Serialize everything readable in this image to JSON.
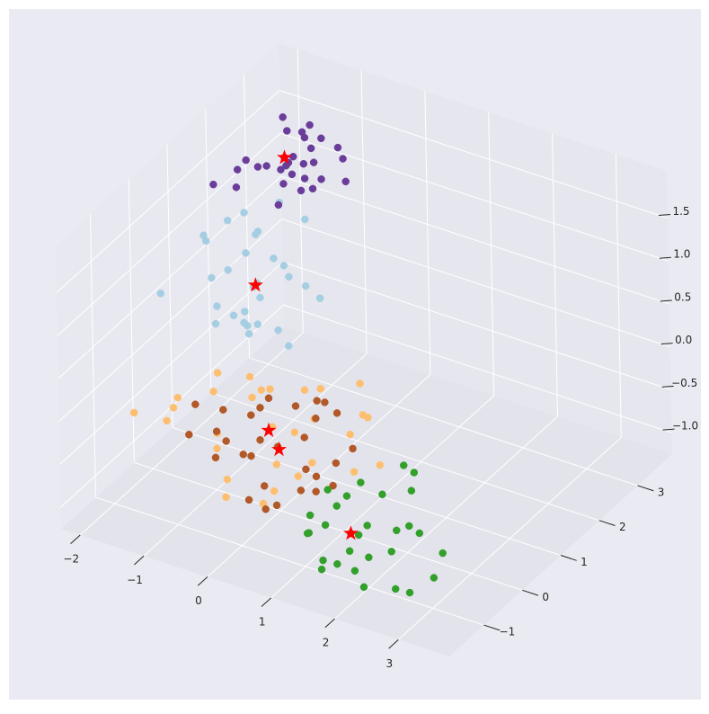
{
  "chart_data": {
    "type": "scatter3d",
    "xlim": [
      -2.3,
      3.8
    ],
    "ylim": [
      -1.9,
      3.9
    ],
    "zlim": [
      -1.25,
      2.05
    ],
    "xticks": [
      {
        "value": -2,
        "label": "−2"
      },
      {
        "value": -1,
        "label": "−1"
      },
      0,
      1,
      2,
      3
    ],
    "yticks": [
      {
        "value": -1,
        "label": "−1"
      },
      0,
      1,
      2,
      3
    ],
    "zticks": [
      {
        "value": -1,
        "label": "−1.0"
      },
      {
        "value": -0.5,
        "label": "−0.5"
      },
      {
        "value": 0,
        "label": "0.0"
      },
      0.5,
      {
        "value": 1,
        "label": "1.0"
      },
      1.5
    ],
    "grid": true,
    "series": [
      {
        "color": "#a6cee3",
        "x": [
          -1.1,
          -0.8,
          -1.5,
          -1.3,
          -0.6,
          -1.9,
          -1.0,
          -0.4,
          -1.6,
          -1.2,
          -0.9,
          -1.4,
          -0.7,
          -2.2,
          -1.1,
          -0.5,
          -1.8,
          -1.3,
          -0.9,
          -1.0,
          -1.5,
          -0.3,
          -1.2,
          -0.8,
          -1.7,
          -1.1,
          -0.6,
          -1.4,
          -2.0,
          -1.0
        ],
        "y": [
          1.2,
          1.5,
          0.9,
          1.6,
          1.0,
          1.3,
          0.8,
          1.4,
          1.8,
          1.1,
          0.7,
          1.5,
          1.9,
          0.6,
          1.3,
          1.1,
          1.7,
          1.0,
          1.4,
          0.9,
          1.2,
          1.6,
          1.5,
          0.8,
          1.1,
          1.9,
          1.3,
          0.7,
          1.4,
          1.2
        ],
        "z": [
          0.6,
          0.8,
          0.4,
          1.0,
          0.3,
          0.9,
          0.5,
          0.7,
          1.1,
          0.2,
          0.4,
          0.8,
          1.2,
          0.5,
          0.6,
          0.1,
          1.0,
          0.3,
          0.9,
          0.2,
          0.7,
          0.5,
          1.1,
          0.4,
          0.6,
          1.3,
          0.8,
          0.3,
          0.9,
          0.5
        ]
      },
      {
        "color": "#6a3d9a",
        "x": [
          -1.5,
          -1.2,
          -1.8,
          -1.0,
          -1.4,
          -1.6,
          -2.0,
          -0.9,
          -1.3,
          -1.1,
          -1.7,
          -1.5,
          -0.7,
          -1.9,
          -1.2,
          -1.4,
          -1.0,
          -1.6,
          -1.3,
          -0.8,
          -1.5,
          -2.2,
          -1.1,
          -1.8,
          -1.2,
          -1.4,
          -0.6,
          -1.7,
          -1.3,
          -1.0
        ],
        "y": [
          2.7,
          2.9,
          2.5,
          2.6,
          3.0,
          2.4,
          2.3,
          3.1,
          2.2,
          2.8,
          3.0,
          2.6,
          2.9,
          2.1,
          2.4,
          3.2,
          2.3,
          2.9,
          2.6,
          2.5,
          2.8,
          2.0,
          3.0,
          2.2,
          2.7,
          2.5,
          2.8,
          3.1,
          2.9,
          2.4
        ],
        "z": [
          1.4,
          1.5,
          1.3,
          1.2,
          1.6,
          1.4,
          1.3,
          1.5,
          1.1,
          1.4,
          1.7,
          1.3,
          1.5,
          1.2,
          1.4,
          1.6,
          1.3,
          1.2,
          1.5,
          1.4,
          1.3,
          1.2,
          1.6,
          1.5,
          1.4,
          1.2,
          1.3,
          1.5,
          1.6,
          1.4
        ]
      },
      {
        "color": "#fdbf6f",
        "x": [
          -0.1,
          -1.2,
          0.6,
          -0.8,
          0.3,
          -1.6,
          1.0,
          -0.4,
          0.8,
          -1.0,
          0.2,
          -0.6,
          1.3,
          -1.9,
          0.5,
          -0.3,
          -1.4,
          0.9,
          0.0,
          -0.9,
          0.4,
          -0.2,
          1.1,
          -1.1,
          0.7,
          -0.5,
          -2.1,
          0.1,
          -0.7,
          1.4
        ],
        "y": [
          0.0,
          0.4,
          -0.5,
          -0.3,
          0.6,
          -0.1,
          0.2,
          -0.7,
          0.8,
          0.9,
          -0.4,
          0.3,
          -0.2,
          0.5,
          0.1,
          -0.9,
          -0.6,
          0.7,
          0.4,
          -0.2,
          -0.8,
          1.0,
          0.5,
          0.2,
          -0.3,
          0.6,
          -0.3,
          -0.6,
          0.7,
          0.3
        ],
        "z": [
          -0.3,
          -0.1,
          -0.5,
          -0.6,
          0.0,
          -0.4,
          -0.2,
          -0.7,
          0.1,
          -0.3,
          -0.5,
          -0.2,
          -0.4,
          -0.6,
          -0.1,
          -0.8,
          -0.3,
          -0.2,
          -0.5,
          0.0,
          -0.6,
          -0.3,
          -0.1,
          -0.7,
          -0.4,
          -0.2,
          -0.5,
          -0.9,
          -0.3,
          -0.5
        ]
      },
      {
        "color": "#b15928",
        "x": [
          0.1,
          -0.5,
          0.7,
          -0.2,
          0.4,
          -1.0,
          0.9,
          -0.7,
          0.3,
          0.0,
          1.1,
          -0.4,
          0.6,
          -1.3,
          0.2,
          -0.1,
          0.8,
          -0.8,
          0.5,
          -0.3,
          1.2,
          -0.6,
          0.0,
          0.4,
          -1.5,
          0.7,
          -0.2,
          0.3,
          1.0,
          -0.9
        ],
        "y": [
          -0.2,
          0.1,
          -0.6,
          -0.4,
          0.3,
          0.2,
          -0.1,
          -0.5,
          0.5,
          -0.8,
          0.1,
          0.4,
          -0.3,
          -0.2,
          -0.7,
          0.6,
          0.2,
          -0.3,
          -0.9,
          0.0,
          -0.5,
          0.5,
          -0.4,
          0.0,
          0.3,
          -0.2,
          -0.6,
          0.7,
          -0.7,
          0.1
        ],
        "z": [
          -0.4,
          -0.3,
          -0.6,
          -0.5,
          -0.2,
          -0.4,
          -0.7,
          -0.6,
          -0.1,
          -0.8,
          -0.3,
          -0.2,
          -0.5,
          -0.6,
          -0.9,
          -0.3,
          0.0,
          -0.4,
          -0.7,
          -0.5,
          -0.2,
          -0.4,
          -0.8,
          -0.3,
          -0.5,
          -0.6,
          -0.4,
          -0.2,
          -0.5,
          -0.7
        ]
      },
      {
        "color": "#33a02c",
        "x": [
          1.6,
          1.2,
          2.0,
          1.4,
          2.4,
          1.0,
          1.8,
          2.7,
          1.5,
          2.2,
          0.9,
          1.7,
          2.9,
          1.3,
          2.1,
          1.9,
          2.5,
          1.1,
          1.6,
          2.3,
          1.4,
          2.6,
          1.8,
          1.0,
          2.0,
          1.5,
          2.8,
          1.2,
          1.9,
          2.2
        ],
        "y": [
          -0.8,
          -0.5,
          -1.0,
          -1.2,
          -0.6,
          -0.9,
          -0.3,
          -1.1,
          -1.4,
          -0.2,
          -0.7,
          -1.0,
          -0.8,
          -0.4,
          -1.3,
          0.1,
          -0.5,
          -1.1,
          -0.6,
          -0.9,
          -0.2,
          -1.3,
          -0.7,
          -0.4,
          0.2,
          -1.0,
          -0.4,
          -0.8,
          -1.2,
          -0.6
        ],
        "z": [
          -0.8,
          -0.7,
          -0.9,
          -1.0,
          -0.6,
          -0.9,
          -0.5,
          -1.1,
          -1.0,
          -0.4,
          -0.8,
          -0.9,
          -1.0,
          -0.6,
          -1.1,
          -0.3,
          -0.7,
          -0.8,
          -0.9,
          -0.8,
          -0.5,
          -1.0,
          -0.7,
          -0.6,
          -0.4,
          -1.1,
          -0.9,
          -0.8,
          -1.0,
          -0.7
        ]
      }
    ],
    "centroids": {
      "color": "#ff0000",
      "marker": "star",
      "x": [
        -0.1,
        0.15,
        -1.1,
        -1.5,
        1.6
      ],
      "y": [
        -0.1,
        -0.25,
        1.25,
        2.7,
        -0.8
      ],
      "z": [
        -0.3,
        -0.4,
        0.6,
        1.4,
        -0.8
      ]
    }
  }
}
